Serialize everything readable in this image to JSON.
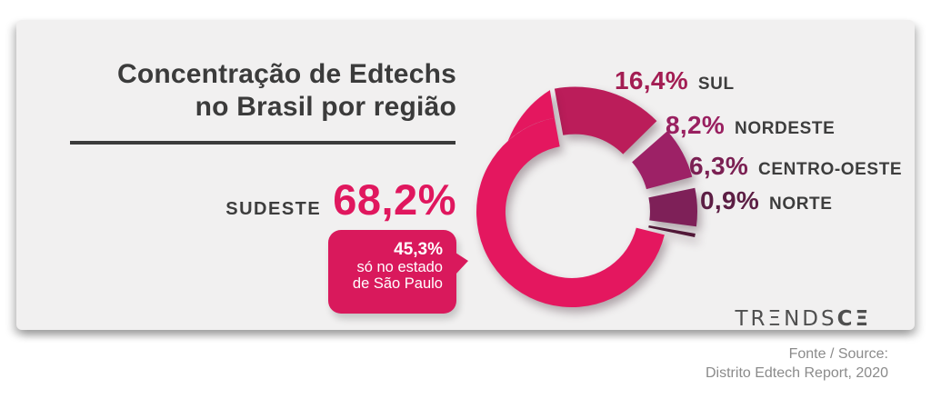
{
  "card": {
    "title_line1": "Concentração de Edtechs",
    "title_line2": "no Brasil por região"
  },
  "callout": {
    "value": "45,3%",
    "line1": "só no estado",
    "line2": "de São Paulo"
  },
  "logo": {
    "text_light": "TRΞNDS",
    "text_bold": "CΞ"
  },
  "footer": {
    "line1": "Fonte / Source:",
    "line2": "Distrito Edtech Report, 2020"
  },
  "colors": {
    "card_bg": "#f1f0f0",
    "title_text": "#3b3b3b",
    "accent_pink": "#e0175e",
    "callout_bg": "#d9195c",
    "region_text": "#3d3d3d",
    "logo_text": "#4f4f4f",
    "footer_text": "#8b8b8b"
  },
  "chart_data": {
    "type": "pie",
    "subtype": "donut",
    "title": "Concentração de Edtechs no Brasil por região",
    "unit": "%",
    "categories": [
      "SUL",
      "NORDESTE",
      "CENTRO-OESTE",
      "NORTE",
      "SUDESTE"
    ],
    "values": [
      16.4,
      8.2,
      6.3,
      0.9,
      68.2
    ],
    "segments": [
      {
        "label": "SUL",
        "value": 16.4,
        "display": "16,4%",
        "color": "#bb1d5a",
        "label_color": "#a31d53",
        "exploded": true
      },
      {
        "label": "NORDESTE",
        "value": 8.2,
        "display": "8,2%",
        "color": "#9d2166",
        "label_color": "#992060",
        "exploded": true
      },
      {
        "label": "CENTRO-OESTE",
        "value": 6.3,
        "display": "6,3%",
        "color": "#7e2058",
        "label_color": "#7b2053",
        "exploded": true
      },
      {
        "label": "NORTE",
        "value": 0.9,
        "display": "0,9%",
        "color": "#511737",
        "label_color": "#5c1e44",
        "exploded": true
      },
      {
        "label": "SUDESTE",
        "value": 68.2,
        "display": "68,2%",
        "color": "#e4175f",
        "label_color": "#e0175e",
        "exploded": false
      }
    ],
    "annotation": {
      "value": "45,3%",
      "text": "só no estado de São Paulo",
      "applies_to": "SUDESTE"
    },
    "legend_position": "right",
    "source": "Distrito Edtech Report, 2020"
  }
}
